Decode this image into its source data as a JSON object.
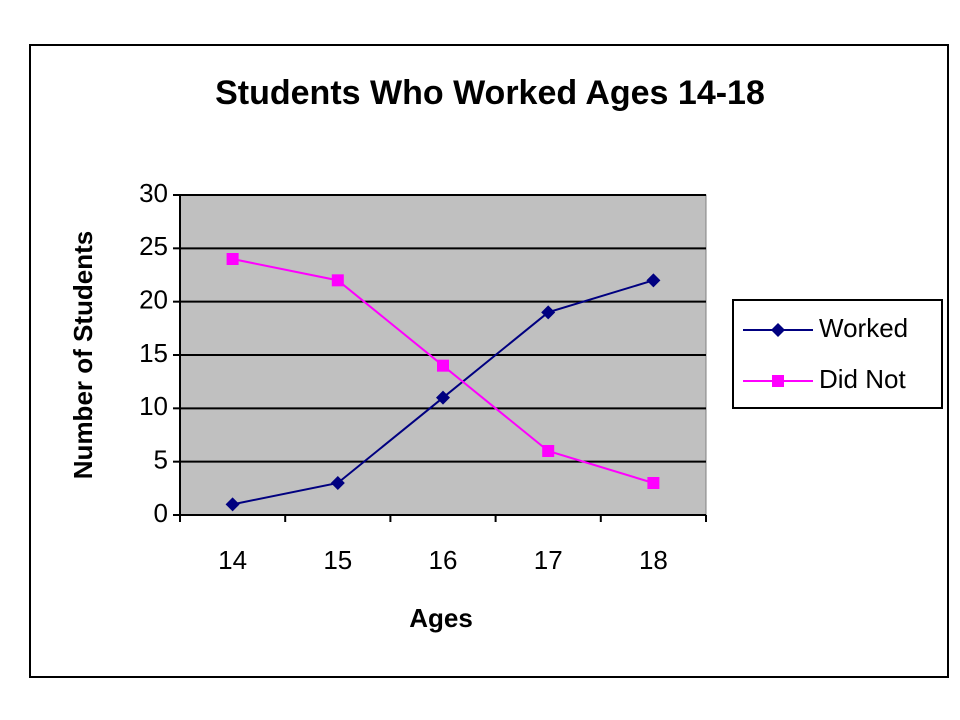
{
  "chart_data": {
    "type": "line",
    "title": "Students Who Worked Ages 14-18",
    "x_label": "Ages",
    "y_label": "Number of Students",
    "categories": [
      "14",
      "15",
      "16",
      "17",
      "18"
    ],
    "series": [
      {
        "name": "Worked",
        "color": "#000080",
        "marker": "diamond",
        "values": [
          1,
          3,
          11,
          19,
          22
        ]
      },
      {
        "name": "Did Not",
        "color": "#ff00ff",
        "marker": "square",
        "values": [
          24,
          22,
          14,
          6,
          3
        ]
      }
    ],
    "ylim": [
      0,
      30
    ],
    "yticks": [
      0,
      5,
      10,
      15,
      20,
      25,
      30
    ],
    "grid": true,
    "legend": "right"
  }
}
